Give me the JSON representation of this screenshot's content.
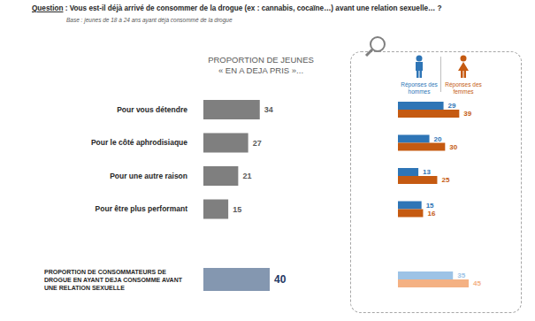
{
  "header": {
    "question": "Question : Vous est-il déjà arrivé de consommer de la drogue (ex : cannabis, cocaïne…) avant une relation sexuelle… ?",
    "base": "Base : jeunes de 18 à 24 ans ayant déjà consommé de la drogue"
  },
  "chart_data": [
    {
      "type": "bar",
      "orientation": "horizontal",
      "title": "PROPORTION DE JEUNES « EN A DEJA PRIS »...",
      "categories": [
        "Pour vous détendre",
        "Pour le côté aphrodisiaque",
        "Pour une autre raison",
        "Pour être plus performant",
        "PROPORTION DE CONSOMMATEURS DE DROGUE EN AYANT DEJA CONSOMME AVANT UNE RELATION SEXUELLE"
      ],
      "values": [
        34,
        27,
        21,
        15,
        40
      ],
      "colors": [
        "#7f7f7f",
        "#7f7f7f",
        "#7f7f7f",
        "#7f7f7f",
        "#8497b0"
      ],
      "data_labels": true,
      "tick_labels": "y"
    },
    {
      "type": "bar",
      "orientation": "horizontal",
      "categories": [
        "Pour vous détendre",
        "Pour le côté aphrodisiaque",
        "Pour une autre raison",
        "Pour être plus performant",
        "PROPORTION DE CONSOMMATEURS DE DROGUE EN AYANT DEJA CONSOMME AVANT UNE RELATION SEXUELLE"
      ],
      "series": [
        {
          "name": "Réponses des hommes",
          "colors": [
            "#2e75b6",
            "#2e75b6",
            "#2e75b6",
            "#2e75b6",
            "#9dc3e6"
          ],
          "values": [
            29,
            20,
            13,
            15,
            35
          ]
        },
        {
          "name": "Réponses des femmes",
          "colors": [
            "#c55a11",
            "#c55a11",
            "#c55a11",
            "#c55a11",
            "#f4b183"
          ],
          "values": [
            39,
            30,
            25,
            16,
            45
          ]
        }
      ],
      "legend": "top",
      "data_labels": true,
      "tick_labels": false
    }
  ]
}
